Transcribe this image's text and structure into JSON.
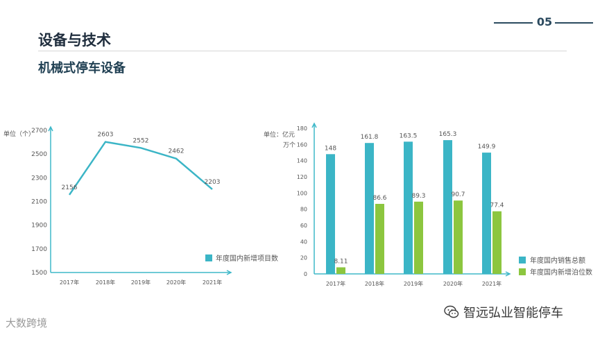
{
  "header": {
    "title": "设备与技术",
    "subtitle": "机械式停车设备",
    "page_number": "05"
  },
  "watermarks": {
    "left": "大数跨境",
    "right": "智远弘业智能停车"
  },
  "colors": {
    "teal": "#3bb5c6",
    "green": "#8cc63f",
    "axis": "#3fb8c9",
    "text": "#555555"
  },
  "chart_data": [
    {
      "type": "line",
      "unit_label": "单位（个）",
      "categories": [
        "2017年",
        "2018年",
        "2019年",
        "2020年",
        "2021年"
      ],
      "series": [
        {
          "name": "年度国内新增项目数",
          "values": [
            2156,
            2603,
            2552,
            2462,
            2203
          ]
        }
      ],
      "ylim": [
        1500,
        2700
      ],
      "yticks": [
        1500,
        1700,
        1900,
        2100,
        2300,
        2500,
        2700
      ],
      "legend_position": "bottom-right",
      "grid": false
    },
    {
      "type": "bar",
      "unit_label_line1": "单位：亿元",
      "unit_label_line2": "万个",
      "categories": [
        "2017年",
        "2018年",
        "2019年",
        "2020年",
        "2021年"
      ],
      "series": [
        {
          "name": "年度国内销售总额",
          "values": [
            148,
            161.8,
            163.5,
            165.3,
            149.9
          ],
          "labels": [
            "148",
            "161.8",
            "163.5",
            "165.3",
            "149.9"
          ]
        },
        {
          "name": "年度国内新增泊位数",
          "values": [
            8.11,
            86.6,
            89.3,
            90.7,
            77.4
          ],
          "labels": [
            "8.11",
            "86.6",
            "89.3",
            "90.7",
            "77.4"
          ]
        }
      ],
      "ylim": [
        0,
        180
      ],
      "yticks": [
        0,
        20,
        40,
        60,
        80,
        100,
        120,
        140,
        160,
        180
      ],
      "legend_position": "bottom-right",
      "grid": false
    }
  ]
}
